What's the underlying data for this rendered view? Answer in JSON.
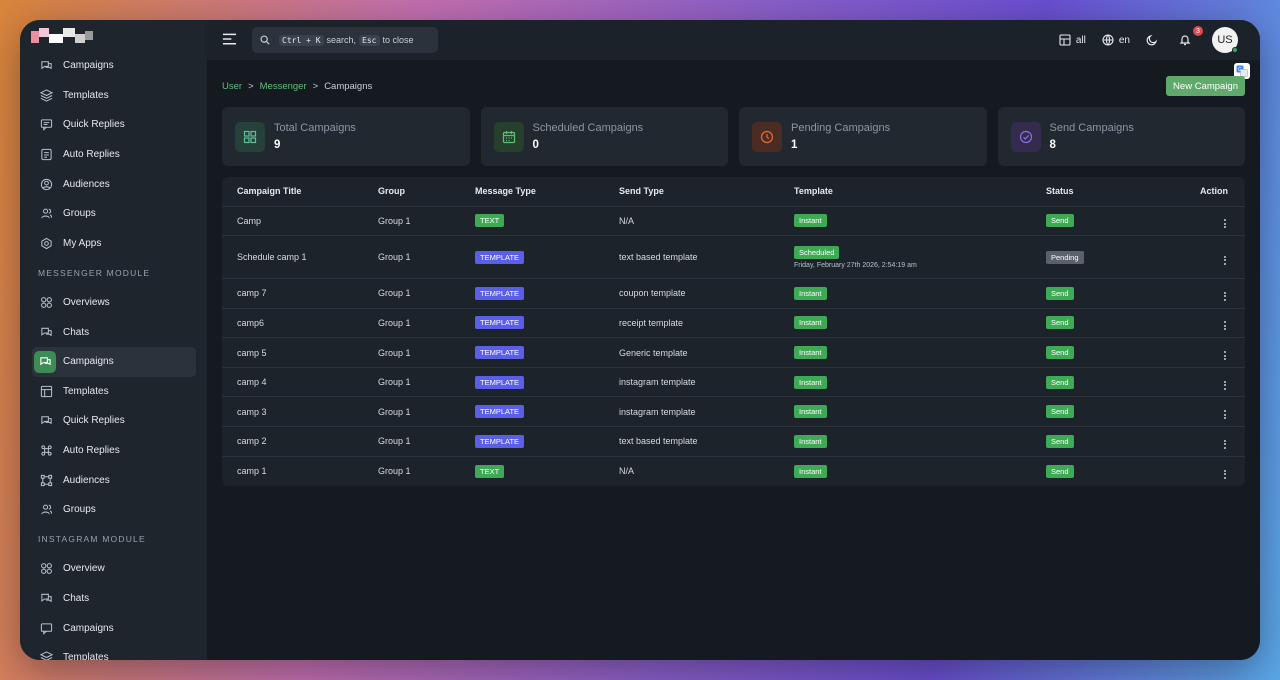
{
  "sidebar": {
    "top_items": [
      {
        "label": "Campaigns",
        "icon": "campaigns-icon"
      },
      {
        "label": "Templates",
        "icon": "layers-icon"
      },
      {
        "label": "Quick Replies",
        "icon": "message-icon"
      },
      {
        "label": "Auto Replies",
        "icon": "document-icon"
      },
      {
        "label": "Audiences",
        "icon": "user-circle-icon"
      },
      {
        "label": "Groups",
        "icon": "users-icon"
      },
      {
        "label": "My Apps",
        "icon": "apps-icon"
      }
    ],
    "messenger_label": "MESSENGER MODULE",
    "messenger_items": [
      {
        "label": "Overviews"
      },
      {
        "label": "Chats"
      },
      {
        "label": "Campaigns"
      },
      {
        "label": "Templates"
      },
      {
        "label": "Quick Replies"
      },
      {
        "label": "Auto Replies"
      },
      {
        "label": "Audiences"
      },
      {
        "label": "Groups"
      }
    ],
    "instagram_label": "INSTAGRAM MODULE",
    "instagram_items": [
      {
        "label": "Overview"
      },
      {
        "label": "Chats"
      },
      {
        "label": "Campaigns"
      },
      {
        "label": "Templates"
      }
    ]
  },
  "topbar": {
    "search_kbd1": "Ctrl + K",
    "search_mid": "search,",
    "search_kbd2": "Esc",
    "search_end": "to close",
    "workspace": "all",
    "language": "en",
    "notif_count": "3",
    "avatar": "US"
  },
  "breadcrumb": {
    "a": "User",
    "b": "Messenger",
    "c": "Campaigns",
    "sep": ">"
  },
  "new_campaign": "New Campaign",
  "cards": [
    {
      "title": "Total Campaigns",
      "value": "9",
      "color": "#5fbf9a",
      "bg": "#26403a"
    },
    {
      "title": "Scheduled Campaigns",
      "value": "0",
      "color": "#5fbf7a",
      "bg": "#26402c"
    },
    {
      "title": "Pending Campaigns",
      "value": "1",
      "color": "#e0673a",
      "bg": "#4a2c22"
    },
    {
      "title": "Send Campaigns",
      "value": "8",
      "color": "#8a6ee8",
      "bg": "#332c4e"
    }
  ],
  "table": {
    "headers": [
      "Campaign Title",
      "Group",
      "Message Type",
      "Send Type",
      "Template",
      "Status",
      "Action"
    ],
    "rows": [
      {
        "title": "Camp",
        "group": "Group 1",
        "type": "TEXT",
        "send": "N/A",
        "template": "Instant",
        "status": "Send"
      },
      {
        "title": "Schedule camp 1",
        "group": "Group 1",
        "type": "TEMPLATE",
        "send": "text based template",
        "template": "Scheduled",
        "date": "Friday, February 27th 2026, 2:54:19 am",
        "status": "Pending"
      },
      {
        "title": "camp 7",
        "group": "Group 1",
        "type": "TEMPLATE",
        "send": "coupon template",
        "template": "Instant",
        "status": "Send"
      },
      {
        "title": "camp6",
        "group": "Group 1",
        "type": "TEMPLATE",
        "send": "receipt template",
        "template": "Instant",
        "status": "Send"
      },
      {
        "title": "camp 5",
        "group": "Group 1",
        "type": "TEMPLATE",
        "send": "Generic template",
        "template": "Instant",
        "status": "Send"
      },
      {
        "title": "camp 4",
        "group": "Group 1",
        "type": "TEMPLATE",
        "send": "instagram template",
        "template": "Instant",
        "status": "Send"
      },
      {
        "title": "camp 3",
        "group": "Group 1",
        "type": "TEMPLATE",
        "send": "instagram template",
        "template": "Instant",
        "status": "Send"
      },
      {
        "title": "camp 2",
        "group": "Group 1",
        "type": "TEMPLATE",
        "send": "text based template",
        "template": "Instant",
        "status": "Send"
      },
      {
        "title": "camp 1",
        "group": "Group 1",
        "type": "TEXT",
        "send": "N/A",
        "template": "Instant",
        "status": "Send"
      }
    ]
  }
}
